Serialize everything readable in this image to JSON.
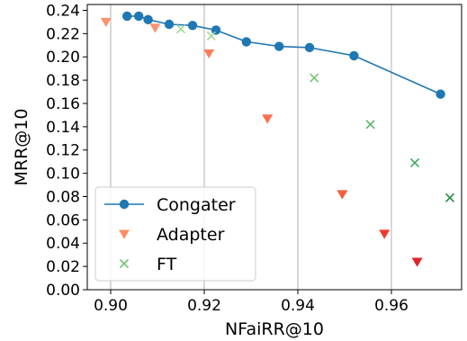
{
  "chart_data": {
    "type": "scatter",
    "title": "",
    "xlabel": "NFaiRR@10",
    "ylabel": "MRR@10",
    "xlim": [
      0.895,
      0.975
    ],
    "ylim": [
      0.0,
      0.245
    ],
    "x_ticks": [
      0.9,
      0.92,
      0.94,
      0.96
    ],
    "x_tick_labels": [
      "0.90",
      "0.92",
      "0.94",
      "0.96"
    ],
    "y_ticks": [
      0.0,
      0.02,
      0.04,
      0.06,
      0.08,
      0.1,
      0.12,
      0.14,
      0.16,
      0.18,
      0.2,
      0.22,
      0.24
    ],
    "y_tick_labels": [
      "0.00",
      "0.02",
      "0.04",
      "0.06",
      "0.08",
      "0.10",
      "0.12",
      "0.14",
      "0.16",
      "0.18",
      "0.20",
      "0.22",
      "0.24"
    ],
    "grid": "vertical",
    "legend_position": "lower-left",
    "series": [
      {
        "name": "Congater",
        "marker": "circle",
        "line": true,
        "color": "#1f77b4",
        "points": [
          {
            "x": 0.9035,
            "y": 0.235
          },
          {
            "x": 0.906,
            "y": 0.235
          },
          {
            "x": 0.908,
            "y": 0.232
          },
          {
            "x": 0.9125,
            "y": 0.228
          },
          {
            "x": 0.9175,
            "y": 0.227
          },
          {
            "x": 0.9225,
            "y": 0.223
          },
          {
            "x": 0.929,
            "y": 0.213
          },
          {
            "x": 0.936,
            "y": 0.209
          },
          {
            "x": 0.9425,
            "y": 0.208
          },
          {
            "x": 0.952,
            "y": 0.201
          },
          {
            "x": 0.9705,
            "y": 0.168
          }
        ]
      },
      {
        "name": "Adapter",
        "marker": "triangle-down",
        "line": false,
        "color": "#fc8d62",
        "points": [
          {
            "x": 0.899,
            "y": 0.23,
            "color": "#fc9272"
          },
          {
            "x": 0.9095,
            "y": 0.225,
            "color": "#fc9272"
          },
          {
            "x": 0.921,
            "y": 0.203,
            "color": "#fb8060"
          },
          {
            "x": 0.9335,
            "y": 0.147,
            "color": "#fb6f4f"
          },
          {
            "x": 0.9495,
            "y": 0.082,
            "color": "#f65e3f"
          },
          {
            "x": 0.9585,
            "y": 0.048,
            "color": "#ef3b2c"
          },
          {
            "x": 0.9655,
            "y": 0.024,
            "color": "#e0262a"
          }
        ]
      },
      {
        "name": "FT",
        "marker": "x",
        "line": false,
        "color": "#74c476",
        "points": [
          {
            "x": 0.915,
            "y": 0.224,
            "color": "#a1d99b"
          },
          {
            "x": 0.9215,
            "y": 0.218,
            "color": "#a1d99b"
          },
          {
            "x": 0.9435,
            "y": 0.182,
            "color": "#74c476"
          },
          {
            "x": 0.9555,
            "y": 0.142,
            "color": "#5ab567"
          },
          {
            "x": 0.965,
            "y": 0.109,
            "color": "#41ab5d"
          },
          {
            "x": 0.9725,
            "y": 0.079,
            "color": "#238b45"
          }
        ]
      }
    ]
  }
}
